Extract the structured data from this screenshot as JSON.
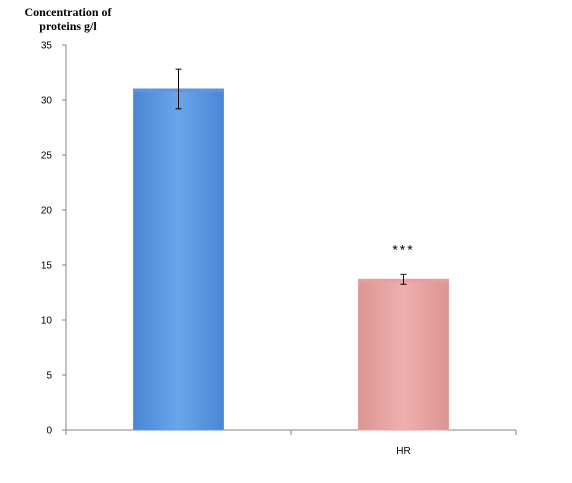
{
  "chart_data": {
    "type": "bar",
    "ylabel_lines": [
      "Concentration of",
      "proteins g/l"
    ],
    "categories": [
      "",
      "HR"
    ],
    "values": [
      31,
      13.7
    ],
    "errors": [
      1.8,
      0.45
    ],
    "colors": [
      "#5b97df",
      "#e6a19f"
    ],
    "annotations": [
      "",
      "***"
    ],
    "ylim": [
      0,
      35
    ],
    "yticks": [
      0,
      5,
      10,
      15,
      20,
      25,
      30,
      35
    ],
    "grid": false,
    "legend": "none"
  }
}
